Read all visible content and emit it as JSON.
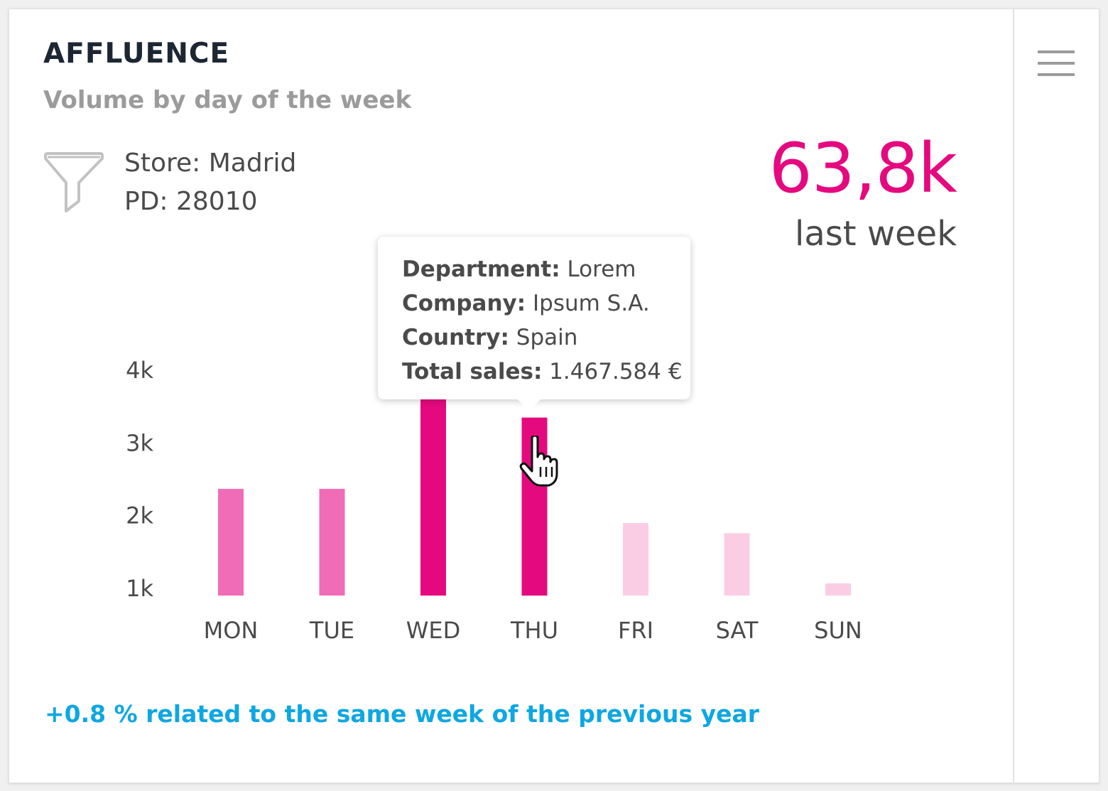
{
  "card": {
    "title": "AFFLUENCE",
    "subtitle": "Volume by day of the week"
  },
  "menu": {
    "icon": "hamburger-menu-icon"
  },
  "filter": {
    "icon": "funnel-filter-icon",
    "store": "Store: Madrid",
    "pd": "PD: 28010"
  },
  "kpi": {
    "value": "63,8k",
    "label": "last week"
  },
  "tooltip": {
    "rows": [
      {
        "key": "Department:",
        "value": " Lorem"
      },
      {
        "key": "Company:",
        "value": " Ipsum S.A."
      },
      {
        "key": "Country:",
        "value": " Spain"
      },
      {
        "key": "Total sales:",
        "value": " 1.467.584 €"
      }
    ]
  },
  "cursor": {
    "icon": "hand-pointer-icon"
  },
  "footer": {
    "text": "+0.8 % related to the same week of the previous year"
  },
  "colors": {
    "accent": "#e5097f",
    "mid": "#f06cb6",
    "light": "#fbcde5",
    "footer": "#0ea7e2"
  },
  "chart_data": {
    "type": "bar",
    "categories": [
      "MON",
      "TUE",
      "WED",
      "THU",
      "FRI",
      "SAT",
      "SUN"
    ],
    "values": [
      2350,
      2350,
      4000,
      3330,
      1880,
      1740,
      1050
    ],
    "bar_colors": [
      "#f06cb6",
      "#f06cb6",
      "#e5097f",
      "#e5097f",
      "#fbcde5",
      "#fbcde5",
      "#fbcde5"
    ],
    "y_tick_labels": [
      "1k",
      "2k",
      "3k",
      "4k"
    ],
    "y_ticks": [
      1000,
      2000,
      3000,
      4000
    ],
    "ylim": [
      1000,
      4000
    ],
    "grid": false,
    "legend": "none",
    "highlighted": "THU"
  }
}
